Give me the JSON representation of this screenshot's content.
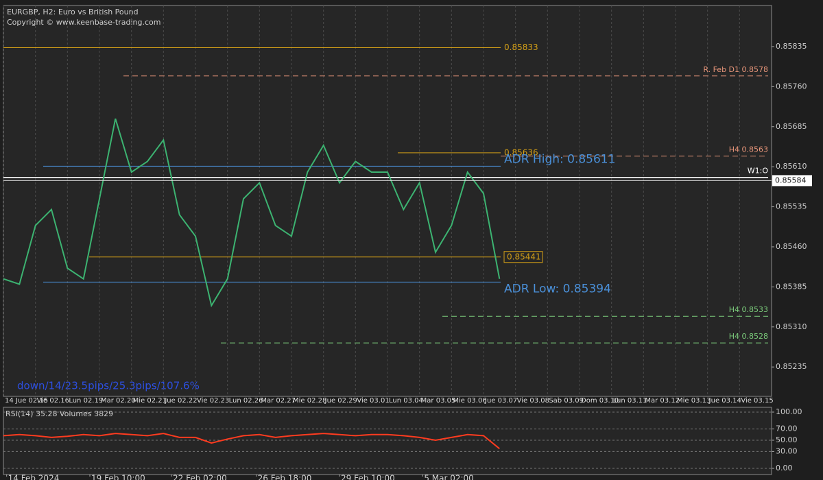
{
  "chart_data": [
    {
      "type": "line",
      "title": "EURGBP, H2:  Euro vs British Pound",
      "subtitle": "Copyright © www.keenbase-trading.com",
      "annotation": "down/14/23.5pips/25.3pips/107.6%",
      "color": "#3cb371",
      "x": [
        0,
        0.5,
        1,
        1.5,
        2,
        2.5,
        3,
        3.5,
        4,
        4.5,
        5,
        5.5,
        6,
        6.5,
        7,
        7.5,
        8,
        8.5,
        9,
        9.5,
        10,
        10.5,
        11,
        11.5,
        12,
        12.5,
        13,
        13.5,
        14,
        14.5,
        15,
        15.5
      ],
      "values": [
        0.854,
        0.8539,
        0.855,
        0.8553,
        0.8542,
        0.854,
        0.8555,
        0.857,
        0.856,
        0.8562,
        0.8566,
        0.8552,
        0.8548,
        0.8535,
        0.854,
        0.8555,
        0.8558,
        0.855,
        0.8548,
        0.856,
        0.8565,
        0.8558,
        0.8562,
        0.856,
        0.856,
        0.8553,
        0.8558,
        0.8545,
        0.855,
        0.856,
        0.8556,
        0.854
      ],
      "xlim": [
        0,
        24
      ],
      "xticks": [
        {
          "value": 0,
          "label": "14 Jue 02.15"
        },
        {
          "value": 1,
          "label": "Vie 02.16"
        },
        {
          "value": 2,
          "label": "Lun 02.19"
        },
        {
          "value": 3,
          "label": "Mar 02.20"
        },
        {
          "value": 4,
          "label": "Mie 02.21"
        },
        {
          "value": 5,
          "label": "Jue 02.22"
        },
        {
          "value": 6,
          "label": "Vie 02.23"
        },
        {
          "value": 7,
          "label": "Lun 02.26"
        },
        {
          "value": 8,
          "label": "Mar 02.27"
        },
        {
          "value": 9,
          "label": "Mie 02.28"
        },
        {
          "value": 10,
          "label": "Jue 02.29"
        },
        {
          "value": 11,
          "label": "Vie 03.01"
        },
        {
          "value": 12,
          "label": "Lun 03.04"
        },
        {
          "value": 13,
          "label": "Mar 03.05"
        },
        {
          "value": 14,
          "label": "Mie 03.06"
        },
        {
          "value": 15,
          "label": "Jue 03.07"
        },
        {
          "value": 16,
          "label": "Vie 03.08"
        },
        {
          "value": 17,
          "label": "Sab 03.09"
        },
        {
          "value": 18,
          "label": "Dom 03.10"
        },
        {
          "value": 19,
          "label": "Lun 03.11"
        },
        {
          "value": 20,
          "label": "Mar 03.12"
        },
        {
          "value": 21,
          "label": "Mie 03.13"
        },
        {
          "value": 22,
          "label": "Jue 03.14"
        },
        {
          "value": 23,
          "label": "Vie 03.15"
        }
      ],
      "ylim": [
        0.8518,
        0.85912
      ],
      "yticks": [
        0.85835,
        {
          "value": 0.8576,
          "label": "0.85760"
        },
        0.85685,
        {
          "value": 0.8561,
          "label": "0.85610"
        },
        0.85535,
        {
          "value": 0.8546,
          "label": "0.85460"
        },
        0.85385,
        {
          "value": 0.8531,
          "label": "0.85310"
        },
        0.85235
      ],
      "grid": true,
      "last_price": 0.85584,
      "levels": [
        {
          "value": 0.85833,
          "label": "0.85833",
          "color": "#d4a017",
          "style": "solid",
          "label_pos": "mid"
        },
        {
          "value": 0.8578,
          "label": "R. Feb D1 0.8578",
          "color": "#e9967a",
          "style": "dashed",
          "label_pos": "right"
        },
        {
          "value": 0.8563,
          "label": "H4 0.8563",
          "color": "#e9967a",
          "style": "dashed",
          "label_pos": "right"
        },
        {
          "value": 0.85636,
          "label": "0.85636",
          "color": "#d4a017",
          "style": "solid",
          "label_pos": "mid"
        },
        {
          "value": 0.85611,
          "label": "ADR High: 0.85611",
          "color": "#4a90d9",
          "style": "solid",
          "label_pos": "big"
        },
        {
          "value": 0.8559,
          "label": "W1:O",
          "color": "#ffffff",
          "style": "solid",
          "label_pos": "right"
        },
        {
          "value": 0.85441,
          "label": "0.85441",
          "color": "#d4a017",
          "style": "solid",
          "label_pos": "box"
        },
        {
          "value": 0.85394,
          "label": "ADR Low: 0.85394",
          "color": "#4a90d9",
          "style": "solid",
          "label_pos": "big"
        },
        {
          "value": 0.8533,
          "label": "H4 0.8533",
          "color": "#7ccd7c",
          "style": "dashed",
          "label_pos": "right"
        },
        {
          "value": 0.8528,
          "label": "H4 0.8528",
          "color": "#7ccd7c",
          "style": "dashed",
          "label_pos": "right"
        }
      ]
    },
    {
      "type": "line",
      "title": "RSI(14) 35.28 Volumes 3829",
      "color": "#ff3b1f",
      "x": [
        0,
        0.5,
        1,
        1.5,
        2,
        2.5,
        3,
        3.5,
        4,
        4.5,
        5,
        5.5,
        6,
        6.5,
        7,
        7.5,
        8,
        8.5,
        9,
        9.5,
        10,
        10.5,
        11,
        11.5,
        12,
        12.5,
        13,
        13.5,
        14,
        14.5,
        15,
        15.5
      ],
      "values": [
        58,
        60,
        58,
        55,
        57,
        60,
        58,
        62,
        60,
        58,
        62,
        55,
        55,
        45,
        52,
        58,
        60,
        55,
        58,
        60,
        62,
        60,
        58,
        60,
        60,
        58,
        55,
        50,
        55,
        60,
        58,
        35
      ],
      "xlim": [
        0,
        24
      ],
      "xticks": [
        {
          "value": 0.1,
          "label": "14 Feb 2024"
        },
        {
          "value": 2.7,
          "label": "19 Feb 10:00"
        },
        {
          "value": 5.25,
          "label": "22 Feb 02:00"
        },
        {
          "value": 7.9,
          "label": "26 Feb 18:00"
        },
        {
          "value": 10.5,
          "label": "29 Feb 10:00"
        },
        {
          "value": 13.1,
          "label": "5 Mar 02:00"
        }
      ],
      "ylim": [
        -11,
        108.5
      ],
      "yticks": [
        {
          "value": 100,
          "label": "100.00"
        },
        {
          "value": 70,
          "label": "70.00"
        },
        {
          "value": 50,
          "label": "50.00"
        },
        {
          "value": 30,
          "label": "30.00"
        },
        {
          "value": 0,
          "label": "0.00"
        }
      ]
    }
  ]
}
